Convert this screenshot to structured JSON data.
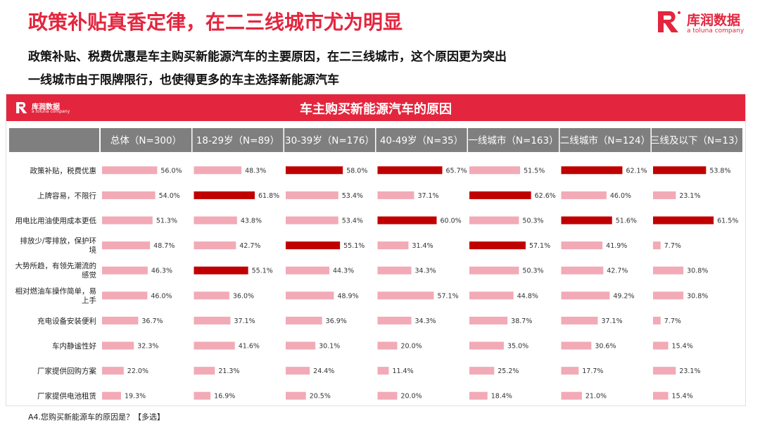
{
  "page": {
    "title": "政策补贴真香定律，在二三线城市尤为明显",
    "subtitle_line1": "政策补贴、税费优惠是车主购买新能源汽车的主要原因，在二三线城市，这个原因更为突出",
    "subtitle_line2": "一线城市由于限牌限行，也使得更多的车主选择新能源汽车",
    "brand_name": "库润数据",
    "brand_tagline": "a toluna company",
    "footnote": "A4.您购买新能源车的原因是？【多选】"
  },
  "colors": {
    "accent": "#e3263e",
    "bar_normal": "#f2aab6",
    "bar_highlight": "#c00000",
    "header_bg": "#7f7f7f",
    "header_text": "#ffffff"
  },
  "chart_data": {
    "type": "bar",
    "orientation": "horizontal",
    "title": "车主购买新能源汽车的原因",
    "unit": "%",
    "categories": [
      "政策补贴，税费优惠",
      "上牌容易，不限行",
      "用电比用油使用成本更低",
      "排放少/零排放，保护环境",
      "大势所趋，有领先潮流的感觉",
      "相对燃油车操作简单，易上手",
      "充电设备安装便利",
      "车内静谧性好",
      "厂家提供回购方案",
      "厂家提供电池租赁"
    ],
    "series": [
      {
        "name": "总体（N=300）",
        "values": [
          56.0,
          54.0,
          51.3,
          48.7,
          46.3,
          46.0,
          36.7,
          32.3,
          22.0,
          19.3
        ],
        "highlight": [
          false,
          false,
          false,
          false,
          false,
          false,
          false,
          false,
          false,
          false
        ]
      },
      {
        "name": "18-29岁（N=89）",
        "values": [
          48.3,
          61.8,
          43.8,
          42.7,
          55.1,
          36.0,
          37.1,
          41.6,
          21.3,
          16.9
        ],
        "highlight": [
          false,
          true,
          false,
          false,
          true,
          false,
          false,
          false,
          false,
          false
        ]
      },
      {
        "name": "30-39岁（N=176）",
        "values": [
          58.0,
          53.4,
          53.4,
          55.1,
          44.3,
          48.9,
          36.9,
          30.1,
          24.4,
          20.5
        ],
        "highlight": [
          true,
          false,
          false,
          true,
          false,
          false,
          false,
          false,
          false,
          false
        ]
      },
      {
        "name": "40-49岁（N=35）",
        "values": [
          65.7,
          37.1,
          60.0,
          31.4,
          34.3,
          57.1,
          34.3,
          20.0,
          11.4,
          20.0
        ],
        "highlight": [
          true,
          false,
          true,
          false,
          false,
          false,
          false,
          false,
          false,
          false
        ]
      },
      {
        "name": "一线城市（N=163）",
        "values": [
          51.5,
          62.6,
          50.3,
          57.1,
          50.3,
          44.8,
          38.7,
          35.0,
          25.2,
          18.4
        ],
        "highlight": [
          false,
          true,
          false,
          true,
          false,
          false,
          false,
          false,
          false,
          false
        ]
      },
      {
        "name": "二线城市（N=124）",
        "values": [
          62.1,
          46.0,
          51.6,
          41.9,
          42.7,
          49.2,
          37.1,
          30.6,
          17.7,
          21.0
        ],
        "highlight": [
          true,
          false,
          true,
          false,
          false,
          false,
          false,
          false,
          false,
          false
        ]
      },
      {
        "name": "三线及以下（N=13）",
        "values": [
          53.8,
          23.1,
          61.5,
          7.7,
          30.8,
          30.8,
          7.7,
          15.4,
          23.1,
          15.4
        ],
        "highlight": [
          true,
          false,
          true,
          false,
          false,
          false,
          false,
          false,
          false,
          false
        ]
      }
    ],
    "xlim": [
      0,
      70
    ],
    "gridlines": false,
    "legend": "none"
  }
}
